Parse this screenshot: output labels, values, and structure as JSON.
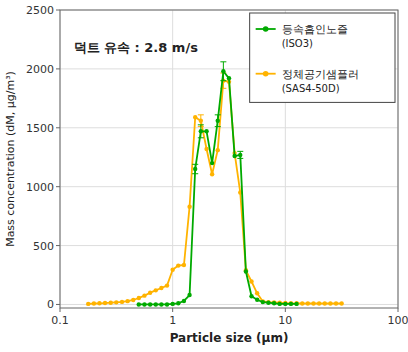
{
  "chart_data": {
    "type": "line",
    "title": "덕트 유속 : 2.8 m/s",
    "x_label": "Particle size (μm)",
    "y_label": "Mass concentration (dM, μg/m³)",
    "log": "x",
    "grid": true,
    "legend": "upper right",
    "marker": "circle",
    "xlim": [
      0.1,
      100
    ],
    "xticks": [
      0.1,
      1,
      10,
      100
    ],
    "ylim": [
      -30,
      2500
    ],
    "yticks": [
      0,
      500,
      1000,
      1500,
      2000,
      2500
    ],
    "series": [
      {
        "name": "정체공기샘플러 (SAS4-50D)",
        "color": "#FFB300",
        "x": [
          0.178,
          0.2,
          0.224,
          0.251,
          0.282,
          0.316,
          0.355,
          0.398,
          0.447,
          0.501,
          0.562,
          0.631,
          0.708,
          0.794,
          0.891,
          1.0,
          1.122,
          1.259,
          1.413,
          1.585,
          1.778,
          2.0,
          2.239,
          2.512,
          2.818,
          3.162,
          3.548,
          3.981,
          4.467,
          5.012,
          5.623,
          6.31,
          7.079,
          7.943,
          8.913,
          10.0,
          11.22,
          12.59,
          14.13,
          15.85,
          17.78,
          19.95,
          22.39,
          25.12,
          28.18,
          31.62
        ],
        "values": [
          5,
          8,
          10,
          12,
          15,
          18,
          22,
          28,
          38,
          55,
          75,
          100,
          120,
          140,
          160,
          295,
          330,
          335,
          830,
          1590,
          1560,
          1320,
          1105,
          1310,
          1900,
          1890,
          1285,
          950,
          290,
          195,
          95,
          25,
          20,
          18,
          15,
          12,
          10,
          10,
          8,
          8,
          8,
          8,
          8,
          8,
          8,
          8
        ],
        "errors": [
          0,
          0,
          0,
          0,
          0,
          0,
          0,
          0,
          0,
          0,
          0,
          0,
          0,
          0,
          0,
          0,
          0,
          0,
          0,
          0,
          50,
          0,
          0,
          0,
          65,
          0,
          0,
          0,
          0,
          0,
          0,
          0,
          0,
          0,
          0,
          0,
          0,
          0,
          0,
          0,
          0,
          0,
          0,
          0,
          0,
          0
        ]
      },
      {
        "name": "등속흡인노즐 (ISO3)",
        "color": "#00AA00",
        "x": [
          0.5,
          0.562,
          0.631,
          0.708,
          0.794,
          0.891,
          1.0,
          1.122,
          1.259,
          1.413,
          1.585,
          1.778,
          2.0,
          2.239,
          2.512,
          2.818,
          3.162,
          3.548,
          3.981,
          4.467,
          5.012,
          5.623,
          6.31,
          7.079,
          7.943,
          8.913,
          10.0,
          11.22,
          12.59
        ],
        "values": [
          0,
          0,
          0,
          0,
          0,
          0,
          5,
          10,
          30,
          80,
          1150,
          1470,
          1470,
          1200,
          1560,
          1980,
          1920,
          1260,
          1270,
          280,
          70,
          40,
          20,
          15,
          10,
          5,
          5,
          5,
          5
        ],
        "errors": [
          0,
          0,
          0,
          0,
          0,
          0,
          0,
          0,
          0,
          0,
          40,
          55,
          0,
          0,
          50,
          80,
          0,
          0,
          30,
          0,
          0,
          0,
          0,
          0,
          0,
          0,
          0,
          0,
          0
        ]
      }
    ]
  }
}
